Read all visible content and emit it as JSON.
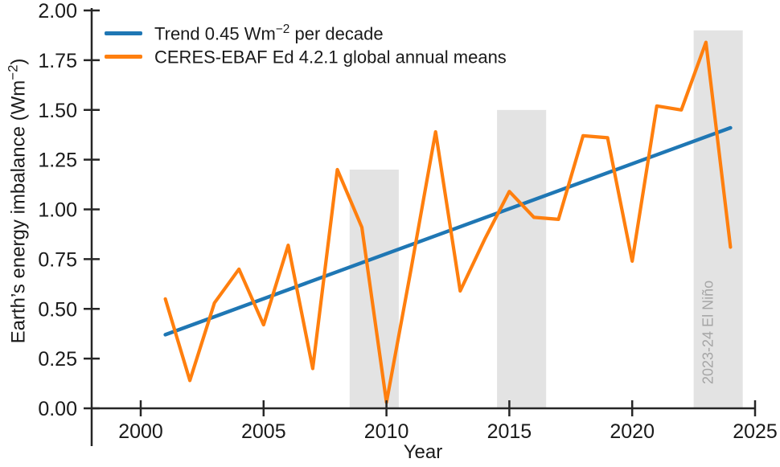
{
  "figure": {
    "background": "#ffffff",
    "text_color": "#1a1a1a",
    "axis_color": "#262626"
  },
  "axis": {
    "xlabel": "Year",
    "ylabel_pre": "Earth’s energy imbalance (Wm",
    "ylabel_sup": "−2",
    "ylabel_post": ")"
  },
  "legend": {
    "items": [
      {
        "pre": "Trend 0.45 Wm",
        "sup": "−2",
        "post": " per decade",
        "color": "#1f77b4"
      },
      {
        "pre": "CERES-EBAF Ed 4.2.1 global annual means",
        "sup": "",
        "post": "",
        "color": "#ff7f0e"
      }
    ]
  },
  "chart_data": {
    "type": "line",
    "title": "",
    "xlabel": "Year",
    "ylabel": "Earth's energy imbalance (Wm−2)",
    "xlim": [
      1998,
      2025
    ],
    "ylim": [
      0.0,
      2.0
    ],
    "x_ticks": [
      2000,
      2005,
      2010,
      2015,
      2020,
      2025
    ],
    "y_tick_labels": [
      "0.00",
      "0.25",
      "0.50",
      "0.75",
      "1.00",
      "1.25",
      "1.50",
      "1.75",
      "2.00"
    ],
    "grid": false,
    "legend_position": "upper left",
    "series": [
      {
        "name": "Trend 0.45 Wm−2 per decade",
        "color": "#1f77b4",
        "x": [
          2001,
          2024
        ],
        "y": [
          0.37,
          1.41
        ]
      },
      {
        "name": "CERES-EBAF Ed 4.2.1 global annual means",
        "color": "#ff7f0e",
        "x": [
          2001,
          2002,
          2003,
          2004,
          2005,
          2006,
          2007,
          2008,
          2009,
          2010,
          2011,
          2012,
          2013,
          2014,
          2015,
          2016,
          2017,
          2018,
          2019,
          2020,
          2021,
          2022,
          2023,
          2024
        ],
        "y": [
          0.55,
          0.14,
          0.53,
          0.7,
          0.42,
          0.82,
          0.2,
          1.2,
          0.91,
          0.03,
          0.7,
          1.39,
          0.59,
          0.85,
          1.09,
          0.96,
          0.95,
          1.37,
          1.36,
          0.74,
          1.52,
          1.5,
          1.84,
          0.81
        ]
      }
    ],
    "bands": [
      {
        "x0": 2008.5,
        "x1": 2010.5,
        "top": 1.2,
        "label": ""
      },
      {
        "x0": 2014.5,
        "x1": 2016.5,
        "top": 1.5,
        "label": ""
      },
      {
        "x0": 2022.5,
        "x1": 2024.5,
        "top": 1.9,
        "label": "2023-24 El Niño"
      }
    ],
    "band_color": "#e3e3e3",
    "band_label_color": "#a6a6a6"
  }
}
